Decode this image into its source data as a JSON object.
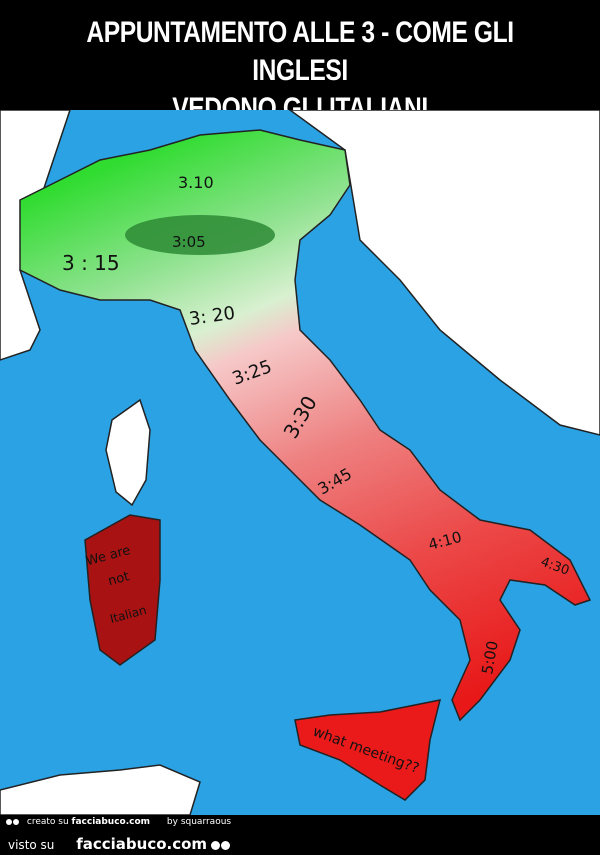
{
  "header": {
    "title_line1": "APPUNTAMENTO ALLE 3 - COME GLI INGLESI",
    "title_line2": "VEDONO GLI ITALIANI"
  },
  "map": {
    "colors": {
      "sea": "#2aa2e4",
      "north": "#3ddc3d",
      "center": "#f4b8b8",
      "south": "#e82020",
      "islands_sardinia": "#a81212"
    },
    "labels": {
      "alps": "3.10",
      "lombardy": "3:05",
      "piedmont": "3 : 15",
      "emilia": "3: 20",
      "tuscany": "3:25",
      "lazio": "3:30",
      "campania": "3:45",
      "basilicata": "4:10",
      "puglia": "4:30",
      "calabria": "5:00",
      "sardinia_line1": "We are",
      "sardinia_line2": "not",
      "sardinia_line3": "Italian",
      "sicily": "what meeting??"
    }
  },
  "footer": {
    "created_prefix": "creato su",
    "created_site": "facciabuco.com",
    "by": "by squarraous",
    "seen_prefix": "visto su",
    "seen_site": "facciabuco.com"
  }
}
